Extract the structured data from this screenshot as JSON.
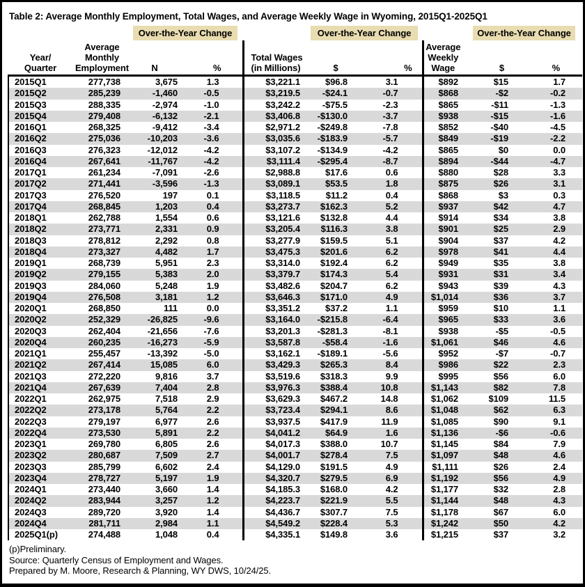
{
  "title": "Table 2: Average Monthly Employment, Total Wages, and Average Weekly Wage in Wyoming, 2015Q1-2025Q1",
  "header": {
    "change_banner": "Over-the-Year Change",
    "columns": {
      "year_quarter": "Year/\nQuarter",
      "avg_monthly_employment": "Average\nMonthly\nEmployment",
      "n": "N",
      "pct": "%",
      "total_wages": "Total Wages\n(in Millions)",
      "dollar": "$",
      "avg_weekly_wage": "Average\nWeekly\nWage"
    }
  },
  "colors": {
    "banner_bg": "#e8dcb0",
    "row_stripe": "#d9d9d9",
    "border": "#000000"
  },
  "table": {
    "rows": [
      [
        "2015Q1",
        "277,738",
        "3,675",
        "1.3",
        "$3,221.1",
        "$96.8",
        "3.1",
        "$892",
        "$15",
        "1.7"
      ],
      [
        "2015Q2",
        "285,239",
        "-1,460",
        "-0.5",
        "$3,219.5",
        "-$24.1",
        "-0.7",
        "$868",
        "-$2",
        "-0.2"
      ],
      [
        "2015Q3",
        "288,335",
        "-2,974",
        "-1.0",
        "$3,242.2",
        "-$75.5",
        "-2.3",
        "$865",
        "-$11",
        "-1.3"
      ],
      [
        "2015Q4",
        "279,408",
        "-6,132",
        "-2.1",
        "$3,406.8",
        "-$130.0",
        "-3.7",
        "$938",
        "-$15",
        "-1.6"
      ],
      [
        "2016Q1",
        "268,325",
        "-9,412",
        "-3.4",
        "$2,971.2",
        "-$249.8",
        "-7.8",
        "$852",
        "-$40",
        "-4.5"
      ],
      [
        "2016Q2",
        "275,036",
        "-10,203",
        "-3.6",
        "$3,035.6",
        "-$183.9",
        "-5.7",
        "$849",
        "-$19",
        "-2.2"
      ],
      [
        "2016Q3",
        "276,323",
        "-12,012",
        "-4.2",
        "$3,107.2",
        "-$134.9",
        "-4.2",
        "$865",
        "$0",
        "0.0"
      ],
      [
        "2016Q4",
        "267,641",
        "-11,767",
        "-4.2",
        "$3,111.4",
        "-$295.4",
        "-8.7",
        "$894",
        "-$44",
        "-4.7"
      ],
      [
        "2017Q1",
        "261,234",
        "-7,091",
        "-2.6",
        "$2,988.8",
        "$17.6",
        "0.6",
        "$880",
        "$28",
        "3.3"
      ],
      [
        "2017Q2",
        "271,441",
        "-3,596",
        "-1.3",
        "$3,089.1",
        "$53.5",
        "1.8",
        "$875",
        "$26",
        "3.1"
      ],
      [
        "2017Q3",
        "276,520",
        "197",
        "0.1",
        "$3,118.5",
        "$11.2",
        "0.4",
        "$868",
        "$3",
        "0.3"
      ],
      [
        "2017Q4",
        "268,845",
        "1,203",
        "0.4",
        "$3,273.7",
        "$162.3",
        "5.2",
        "$937",
        "$42",
        "4.7"
      ],
      [
        "2018Q1",
        "262,788",
        "1,554",
        "0.6",
        "$3,121.6",
        "$132.8",
        "4.4",
        "$914",
        "$34",
        "3.8"
      ],
      [
        "2018Q2",
        "273,771",
        "2,331",
        "0.9",
        "$3,205.4",
        "$116.3",
        "3.8",
        "$901",
        "$25",
        "2.9"
      ],
      [
        "2018Q3",
        "278,812",
        "2,292",
        "0.8",
        "$3,277.9",
        "$159.5",
        "5.1",
        "$904",
        "$37",
        "4.2"
      ],
      [
        "2018Q4",
        "273,327",
        "4,482",
        "1.7",
        "$3,475.3",
        "$201.6",
        "6.2",
        "$978",
        "$41",
        "4.4"
      ],
      [
        "2019Q1",
        "268,739",
        "5,951",
        "2.3",
        "$3,314.0",
        "$192.4",
        "6.2",
        "$949",
        "$35",
        "3.8"
      ],
      [
        "2019Q2",
        "279,155",
        "5,383",
        "2.0",
        "$3,379.7",
        "$174.3",
        "5.4",
        "$931",
        "$31",
        "3.4"
      ],
      [
        "2019Q3",
        "284,060",
        "5,248",
        "1.9",
        "$3,482.6",
        "$204.7",
        "6.2",
        "$943",
        "$39",
        "4.3"
      ],
      [
        "2019Q4",
        "276,508",
        "3,181",
        "1.2",
        "$3,646.3",
        "$171.0",
        "4.9",
        "$1,014",
        "$36",
        "3.7"
      ],
      [
        "2020Q1",
        "268,850",
        "111",
        "0.0",
        "$3,351.2",
        "$37.2",
        "1.1",
        "$959",
        "$10",
        "1.1"
      ],
      [
        "2020Q2",
        "252,329",
        "-26,825",
        "-9.6",
        "$3,164.0",
        "-$215.8",
        "-6.4",
        "$965",
        "$33",
        "3.6"
      ],
      [
        "2020Q3",
        "262,404",
        "-21,656",
        "-7.6",
        "$3,201.3",
        "-$281.3",
        "-8.1",
        "$938",
        "-$5",
        "-0.5"
      ],
      [
        "2020Q4",
        "260,235",
        "-16,273",
        "-5.9",
        "$3,587.8",
        "-$58.4",
        "-1.6",
        "$1,061",
        "$46",
        "4.6"
      ],
      [
        "2021Q1",
        "255,457",
        "-13,392",
        "-5.0",
        "$3,162.1",
        "-$189.1",
        "-5.6",
        "$952",
        "-$7",
        "-0.7"
      ],
      [
        "2021Q2",
        "267,414",
        "15,085",
        "6.0",
        "$3,429.3",
        "$265.3",
        "8.4",
        "$986",
        "$22",
        "2.3"
      ],
      [
        "2021Q3",
        "272,220",
        "9,816",
        "3.7",
        "$3,519.6",
        "$318.3",
        "9.9",
        "$995",
        "$56",
        "6.0"
      ],
      [
        "2021Q4",
        "267,639",
        "7,404",
        "2.8",
        "$3,976.3",
        "$388.4",
        "10.8",
        "$1,143",
        "$82",
        "7.8"
      ],
      [
        "2022Q1",
        "262,975",
        "7,518",
        "2.9",
        "$3,629.3",
        "$467.2",
        "14.8",
        "$1,062",
        "$109",
        "11.5"
      ],
      [
        "2022Q2",
        "273,178",
        "5,764",
        "2.2",
        "$3,723.4",
        "$294.1",
        "8.6",
        "$1,048",
        "$62",
        "6.3"
      ],
      [
        "2022Q3",
        "279,197",
        "6,977",
        "2.6",
        "$3,937.5",
        "$417.9",
        "11.9",
        "$1,085",
        "$90",
        "9.1"
      ],
      [
        "2022Q4",
        "273,530",
        "5,891",
        "2.2",
        "$4,041.2",
        "$64.9",
        "1.6",
        "$1,136",
        "-$6",
        "-0.6"
      ],
      [
        "2023Q1",
        "269,780",
        "6,805",
        "2.6",
        "$4,017.3",
        "$388.0",
        "10.7",
        "$1,145",
        "$84",
        "7.9"
      ],
      [
        "2023Q2",
        "280,687",
        "7,509",
        "2.7",
        "$4,001.7",
        "$278.4",
        "7.5",
        "$1,097",
        "$48",
        "4.6"
      ],
      [
        "2023Q3",
        "285,799",
        "6,602",
        "2.4",
        "$4,129.0",
        "$191.5",
        "4.9",
        "$1,111",
        "$26",
        "2.4"
      ],
      [
        "2023Q4",
        "278,727",
        "5,197",
        "1.9",
        "$4,320.7",
        "$279.5",
        "6.9",
        "$1,192",
        "$56",
        "4.9"
      ],
      [
        "2024Q1",
        "273,440",
        "3,660",
        "1.4",
        "$4,185.3",
        "$168.0",
        "4.2",
        "$1,177",
        "$32",
        "2.8"
      ],
      [
        "2024Q2",
        "283,944",
        "3,257",
        "1.2",
        "$4,223.7",
        "$221.9",
        "5.5",
        "$1,144",
        "$48",
        "4.3"
      ],
      [
        "2024Q3",
        "289,720",
        "3,920",
        "1.4",
        "$4,436.7",
        "$307.7",
        "7.5",
        "$1,178",
        "$67",
        "6.0"
      ],
      [
        "2024Q4",
        "281,711",
        "2,984",
        "1.1",
        "$4,549.2",
        "$228.4",
        "5.3",
        "$1,242",
        "$50",
        "4.2"
      ],
      [
        "2025Q1(p)",
        "274,488",
        "1,048",
        "0.4",
        "$4,335.1",
        "$149.8",
        "3.6",
        "$1,215",
        "$37",
        "3.2"
      ]
    ]
  },
  "footnotes": [
    "(p)Preliminary.",
    "Source: Quarterly Census of Employment and Wages.",
    "Prepared by M. Moore, Research & Planning, WY DWS, 10/24/25."
  ]
}
